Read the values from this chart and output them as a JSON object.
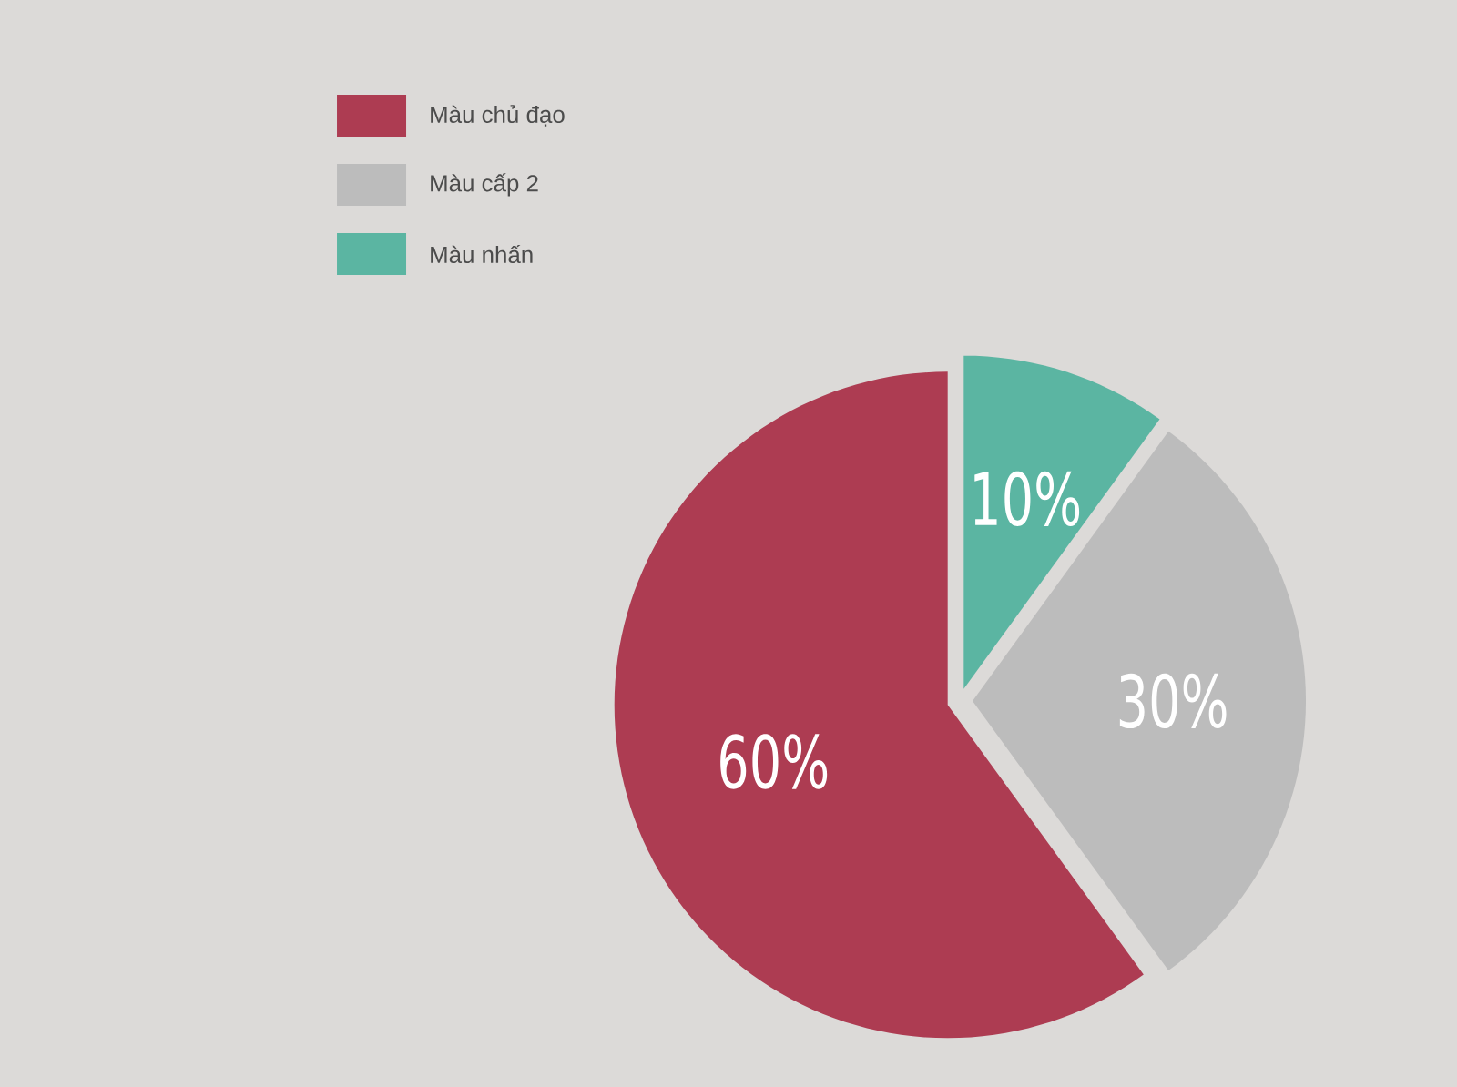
{
  "chart_data": {
    "type": "pie",
    "categories": [
      "Màu chủ đạo",
      "Màu cấp 2",
      "Màu nhấn"
    ],
    "values": [
      60,
      30,
      10
    ],
    "colors": [
      "#ad3c52",
      "#bcbcbc",
      "#5bb5a2"
    ],
    "value_labels": [
      "60%",
      "30%",
      "10%"
    ],
    "legend": "top left"
  }
}
